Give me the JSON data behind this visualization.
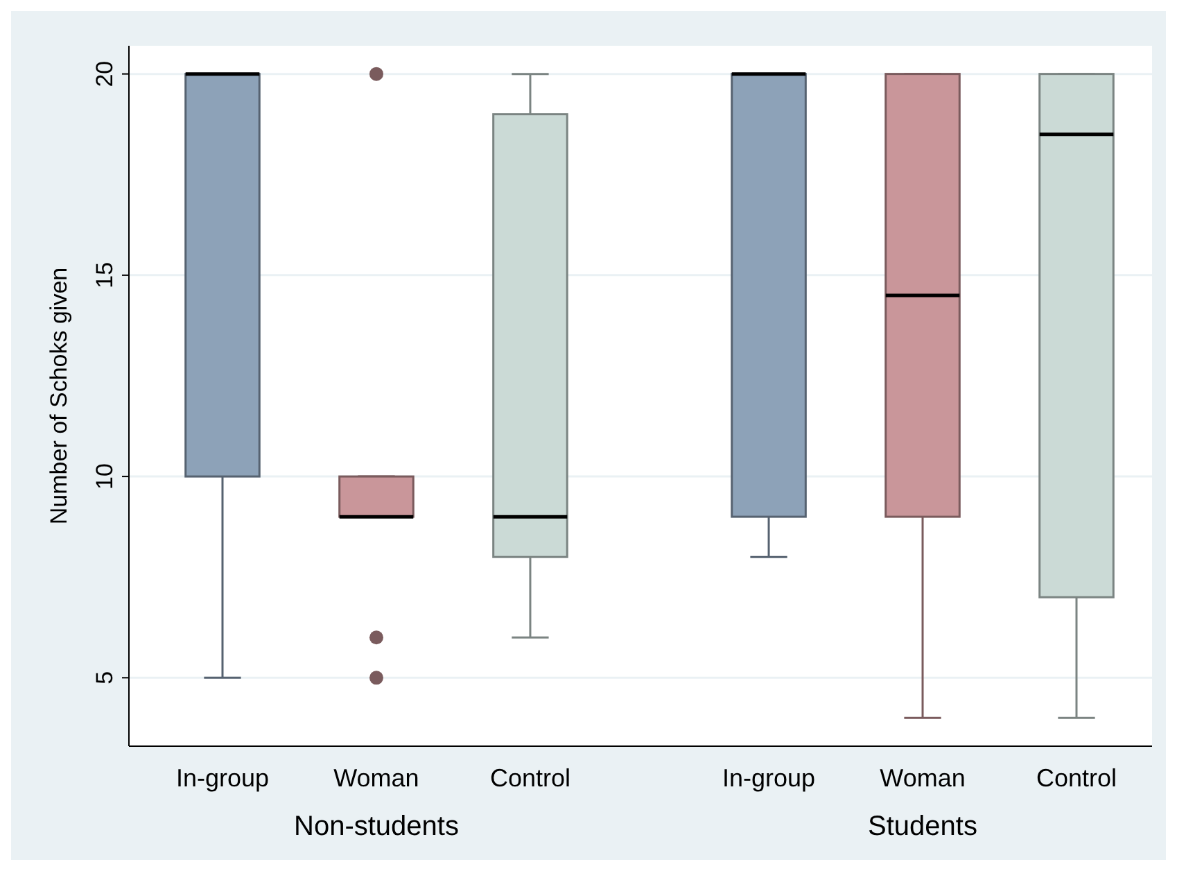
{
  "chart_data": {
    "type": "box",
    "ylabel": "Number of Schoks given",
    "categories": [
      "In-group",
      "Woman",
      "Control",
      "In-group",
      "Woman",
      "Control"
    ],
    "colors": [
      "#8da2b8",
      "#c9969a",
      "#cbdad6",
      "#8da2b8",
      "#c9969a",
      "#cbdad6"
    ],
    "boxes": [
      {
        "low": 5,
        "q1": 10,
        "median": 20,
        "q3": 20,
        "high": 20
      },
      {
        "low": 9,
        "q1": 9,
        "median": 9,
        "q3": 10,
        "high": 10,
        "outliers": [
          20,
          6,
          5
        ]
      },
      {
        "low": 6,
        "q1": 8,
        "median": 9,
        "q3": 19,
        "high": 20
      },
      {
        "low": 8,
        "q1": 9,
        "median": 20,
        "q3": 20,
        "high": 20
      },
      {
        "low": 4,
        "q1": 9,
        "median": 14.5,
        "q3": 20,
        "high": 20
      },
      {
        "low": 4,
        "q1": 7,
        "median": 18.5,
        "q3": 20,
        "high": 20
      }
    ],
    "annotations": [
      "Non-students",
      "Students"
    ],
    "ylim": [
      3.3,
      20.7
    ],
    "yticks": [
      5,
      10,
      15,
      20
    ],
    "grid": "y"
  }
}
